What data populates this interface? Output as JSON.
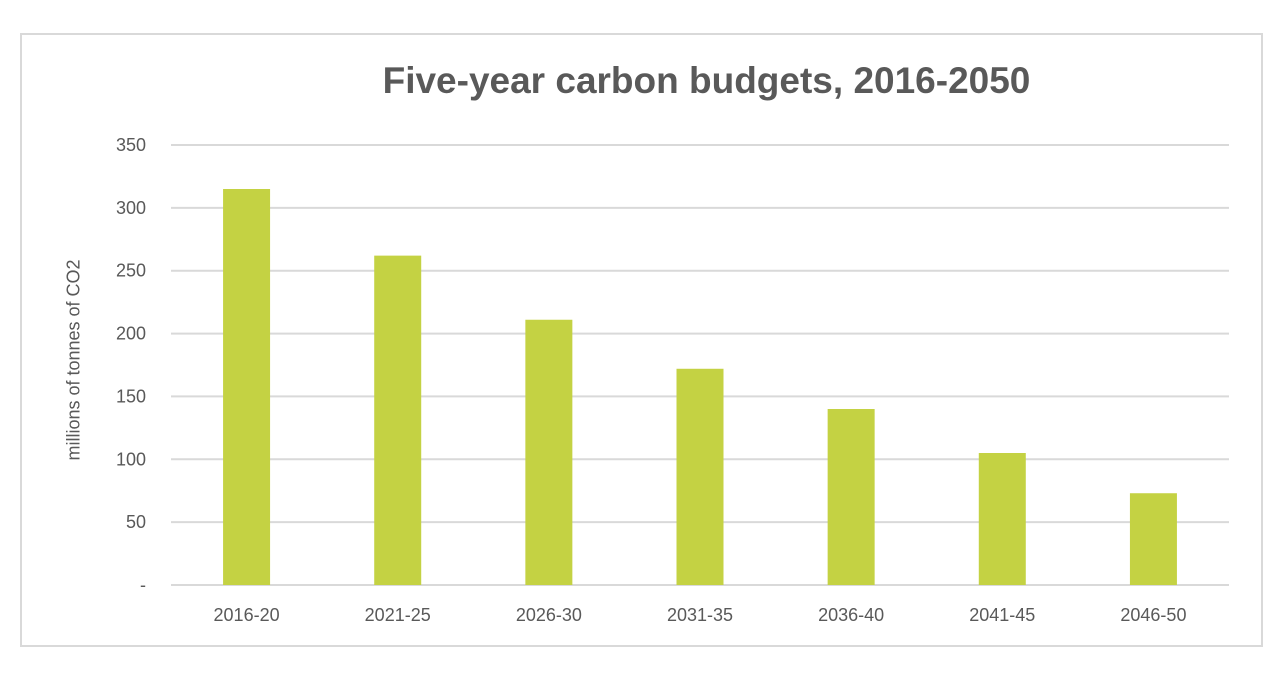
{
  "chart_data": {
    "type": "bar",
    "title": "Five-year carbon budgets, 2016-2050",
    "xlabel": "",
    "ylabel": "millions of tonnes of CO2",
    "categories": [
      "2016-20",
      "2021-25",
      "2026-30",
      "2031-35",
      "2036-40",
      "2041-45",
      "2046-50"
    ],
    "values": [
      315,
      262,
      211,
      172,
      140,
      105,
      73
    ],
    "ylim": [
      0,
      350
    ],
    "yticks": [
      0,
      50,
      100,
      150,
      200,
      250,
      300,
      350
    ],
    "ytick_labels": [
      "-",
      "50",
      "100",
      "150",
      "200",
      "250",
      "300",
      "350"
    ],
    "grid": true,
    "bar_color": "#c4d243",
    "grid_color": "#d9d9d9",
    "text_color": "#595959"
  }
}
